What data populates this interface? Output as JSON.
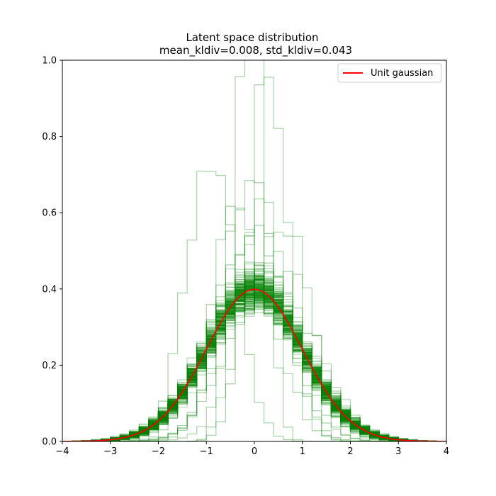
{
  "chart_data": {
    "type": "line",
    "title": "Latent space distribution",
    "subtitle": "mean_kldiv=0.008, std_kldiv=0.043",
    "xlabel": "",
    "ylabel": "",
    "xlim": [
      -4,
      4
    ],
    "ylim": [
      0,
      1
    ],
    "x_ticks": [
      -4,
      -3,
      -2,
      -1,
      0,
      1,
      2,
      3,
      4
    ],
    "x_tick_labels": [
      "−4",
      "−3",
      "−2",
      "−1",
      "0",
      "1",
      "2",
      "3",
      "4"
    ],
    "y_ticks": [
      0.0,
      0.2,
      0.4,
      0.6,
      0.8,
      1.0
    ],
    "y_tick_labels": [
      "0.0",
      "0.2",
      "0.4",
      "0.6",
      "0.8",
      "1.0"
    ],
    "grid": false,
    "legend": {
      "placement": "top-right",
      "entries": [
        {
          "label": "Unit gaussian",
          "color": "#ff0000"
        }
      ]
    },
    "series": [
      {
        "name": "Unit gaussian",
        "kind": "line",
        "color": "#ff0000",
        "function": "standard normal pdf",
        "x_range": [
          -4,
          4
        ]
      },
      {
        "kind": "step-histograms",
        "color": "#008000",
        "opacity": 0.35,
        "bins": [
          -4.0,
          -3.8,
          -3.6,
          -3.4,
          -3.2,
          -3.0,
          -2.8,
          -2.6,
          -2.4,
          -2.2,
          -2.0,
          -1.8,
          -1.6,
          -1.4,
          -1.2,
          -1.0,
          -0.8,
          -0.6,
          -0.4,
          -0.2,
          0.0,
          0.2,
          0.4,
          0.6,
          0.8,
          1.0,
          1.2,
          1.4,
          1.6,
          1.8,
          2.0,
          2.2,
          2.4,
          2.6,
          2.8,
          3.0,
          3.2,
          3.4,
          3.6,
          3.8,
          4.0
        ],
        "histograms": [
          {
            "mean": -0.9,
            "std": 0.5
          },
          {
            "mean": 0.3,
            "std": 0.42
          },
          {
            "mean": -0.3,
            "std": 0.65
          },
          {
            "mean": 0.5,
            "std": 0.7
          },
          {
            "mean": 0.0,
            "std": 0.6
          },
          {
            "mean": 0.2,
            "std": 0.75
          },
          {
            "mean": -0.1,
            "std": 0.3
          },
          {
            "mean": 0.1,
            "std": 0.68
          },
          {
            "mean": -0.2,
            "std": 0.8
          },
          {
            "mean": 0.4,
            "std": 0.85
          },
          {
            "mean": 0.05,
            "std": 0.95
          },
          {
            "mean": -0.05,
            "std": 1.0
          },
          {
            "mean": 0.08,
            "std": 1.05
          }
        ],
        "band": {
          "center_mean": 0.0,
          "center_std": 1.0,
          "count": 180
        }
      }
    ]
  }
}
